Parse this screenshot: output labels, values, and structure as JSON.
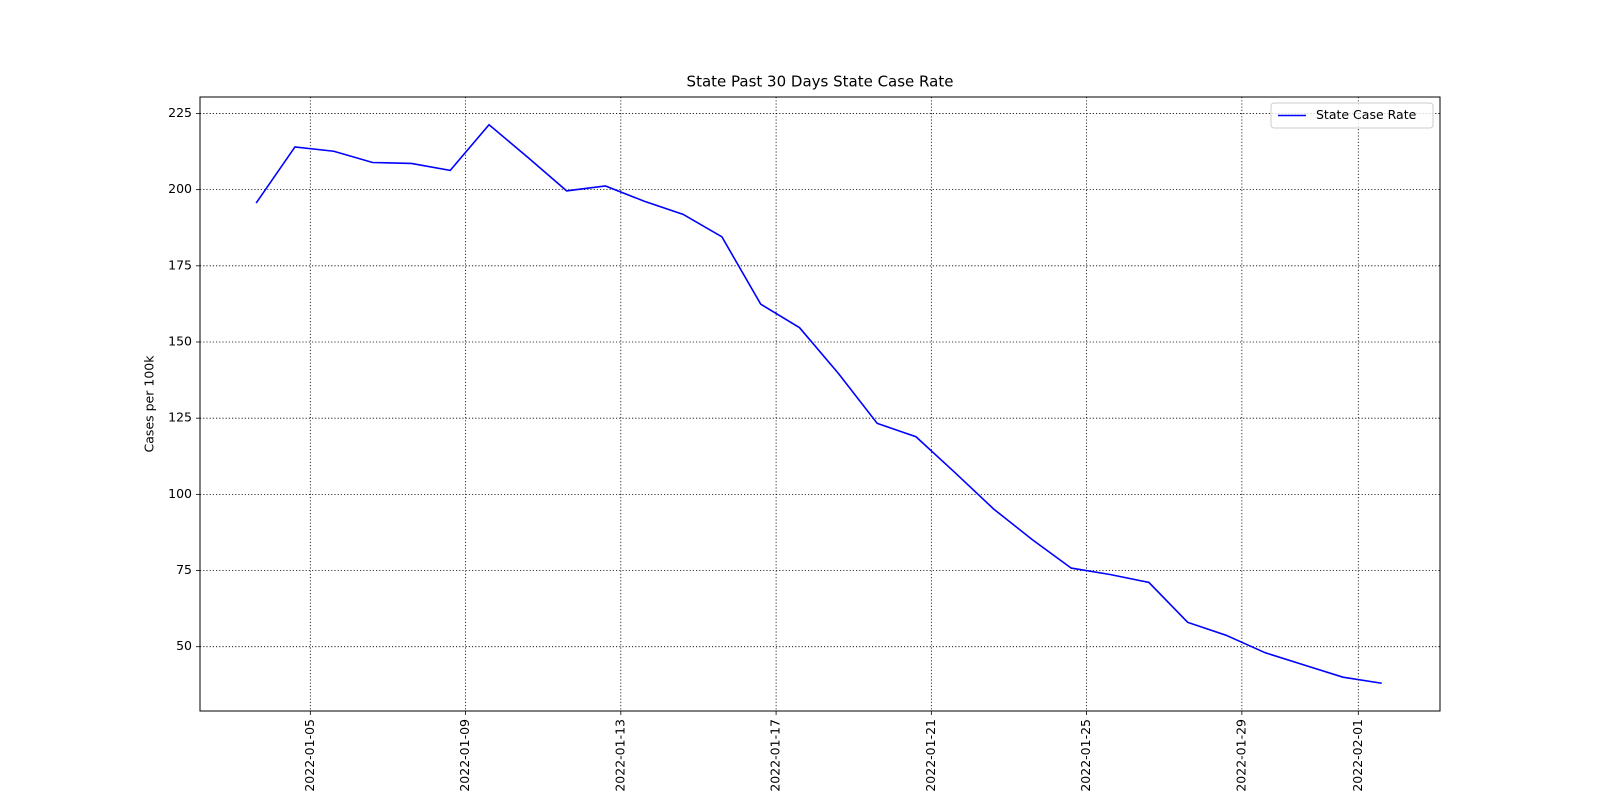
{
  "chart_data": {
    "type": "line",
    "title": "State Past 30 Days  State Case Rate",
    "ylabel": "Cases per 100k",
    "x": [
      "2022-01-03T14:30",
      "2022-01-04T14:30",
      "2022-01-05T14:30",
      "2022-01-06T14:30",
      "2022-01-07T14:30",
      "2022-01-08T14:30",
      "2022-01-09T14:30",
      "2022-01-10T14:30",
      "2022-01-11T14:30",
      "2022-01-12T14:30",
      "2022-01-13T14:30",
      "2022-01-14T14:30",
      "2022-01-15T14:30",
      "2022-01-16T14:30",
      "2022-01-17T14:30",
      "2022-01-18T14:30",
      "2022-01-19T14:30",
      "2022-01-20T14:30",
      "2022-01-21T14:30",
      "2022-01-22T14:30",
      "2022-01-23T14:30",
      "2022-01-24T14:30",
      "2022-01-25T14:30",
      "2022-01-26T14:30",
      "2022-01-27T14:30",
      "2022-01-28T14:30",
      "2022-01-29T14:30",
      "2022-01-30T14:30",
      "2022-01-31T14:30",
      "2022-02-01T14:30"
    ],
    "series": [
      {
        "name": "State Case Rate",
        "color": "#0000ff",
        "values": [
          195.6,
          214.0,
          212.6,
          208.9,
          208.6,
          206.3,
          221.3,
          210.6,
          199.6,
          201.2,
          196.2,
          191.9,
          184.5,
          162.4,
          154.7,
          139.7,
          123.3,
          118.9,
          107.2,
          95.2,
          85.1,
          75.8,
          73.7,
          71.1,
          58.0,
          53.7,
          48.0,
          44.0,
          40.0,
          38.0
        ]
      }
    ],
    "xlim": [
      "2022-01-02T03:47",
      "2022-02-03T02:31"
    ],
    "xticks": [
      "2022-01-05",
      "2022-01-09",
      "2022-01-13",
      "2022-01-17",
      "2022-01-21",
      "2022-01-25",
      "2022-01-29",
      "2022-02-01"
    ],
    "ylim": [
      28.9,
      230.4
    ],
    "yticks": [
      50,
      75,
      100,
      125,
      150,
      175,
      200,
      225
    ],
    "grid": true,
    "legend": "upper right"
  }
}
